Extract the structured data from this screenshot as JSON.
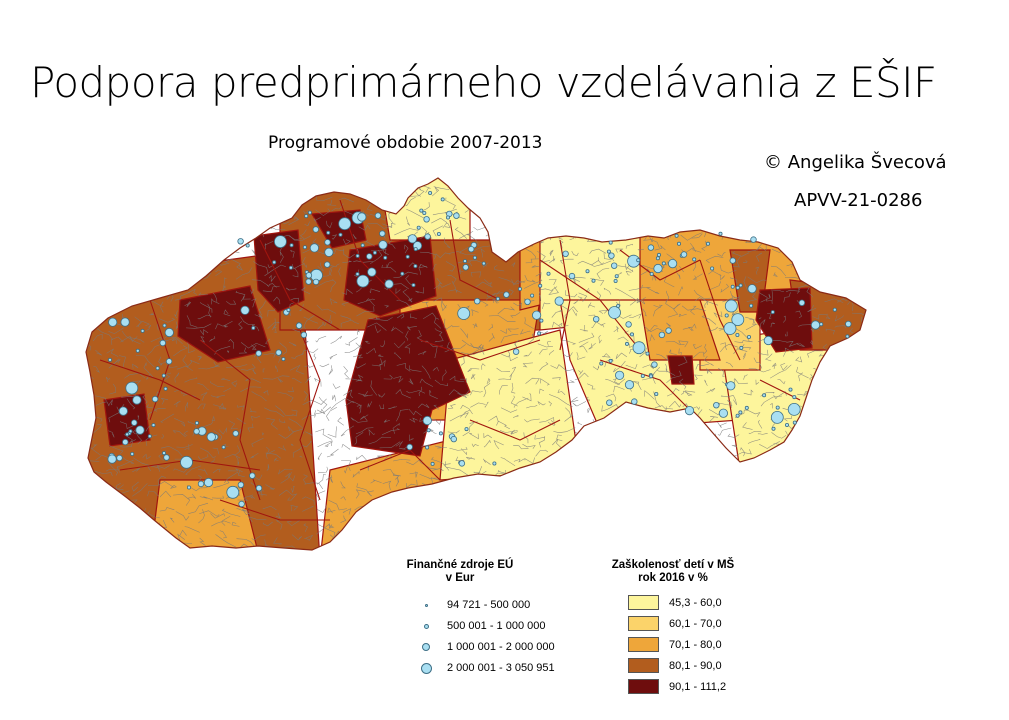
{
  "header": {
    "title": "Podpora predprimárneho vzdelávania z EŠIF",
    "subtitle": "Programové obdobie 2007-2013",
    "author": "© Angelika Švecová",
    "project": "APVV-21-0286"
  },
  "colors": {
    "class_1": "#fdf59c",
    "class_2": "#fbd36a",
    "class_3": "#eea63a",
    "class_4": "#b25d1e",
    "class_5": "#6e0d0d",
    "border_municipal": "#7a7a7a",
    "border_district": "#a0150f",
    "circle_fill": "#a9dff2",
    "circle_stroke": "#3d6f86"
  },
  "legend_funds": {
    "title": "Finančné zdroje EÚ\nv Eur",
    "items": [
      {
        "label": "94 721 - 500 000",
        "size": 1
      },
      {
        "label": "500 001 - 1 000 000",
        "size": 2
      },
      {
        "label": "1 000 001 - 2 000 000",
        "size": 3
      },
      {
        "label": "2 000 001 - 3 050 951",
        "size": 4
      }
    ]
  },
  "legend_rate": {
    "title": "Zaškolenosť detí v MŠ\nrok 2016 v %",
    "items": [
      {
        "label": "45,3 - 60,0",
        "color": "#fdf59c"
      },
      {
        "label": "60,1 - 70,0",
        "color": "#fbd36a"
      },
      {
        "label": "70,1 - 80,0",
        "color": "#eea63a"
      },
      {
        "label": "80,1 - 90,0",
        "color": "#b25d1e"
      },
      {
        "label": "90,1 - 111,2",
        "color": "#6e0d0d"
      }
    ]
  }
}
